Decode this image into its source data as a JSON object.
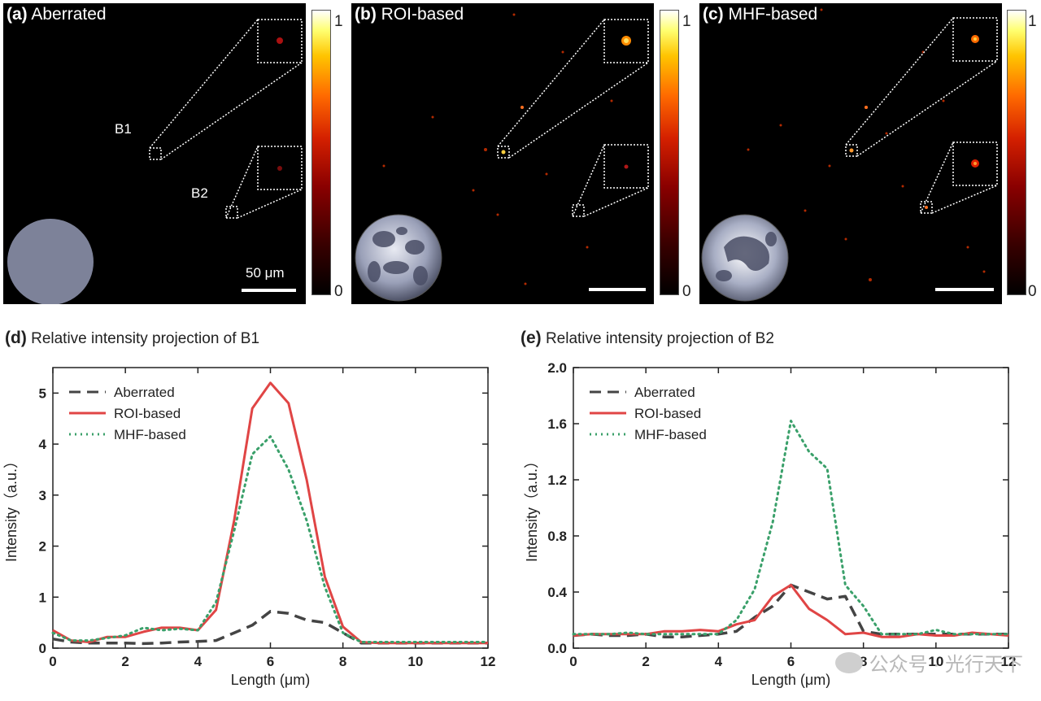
{
  "panels": [
    {
      "label": "(a)",
      "title": "Aberrated",
      "scale_text": "50 μm",
      "markers": [
        "B1",
        "B2"
      ],
      "cb_top": "1",
      "cb_bottom": "0"
    },
    {
      "label": "(b)",
      "title": "ROI-based",
      "cb_top": "1",
      "cb_bottom": "0"
    },
    {
      "label": "(c)",
      "title": "MHF-based",
      "cb_top": "1",
      "cb_bottom": "0"
    }
  ],
  "colors": {
    "aberrated": "#444444",
    "roi": "#e04545",
    "mhf": "#3aa06a",
    "pupil_flat": "#7d8299"
  },
  "watermark": "公众号 · 光行天下",
  "chart_data": [
    {
      "type": "line",
      "panel_label": "(d)",
      "title": "Relative intensity projection of B1",
      "xlabel": "Length (μm)",
      "ylabel": "Intensity（a.u.）",
      "xlim": [
        0,
        12
      ],
      "ylim": [
        0,
        5.5
      ],
      "xticks": [
        0,
        2,
        4,
        6,
        8,
        10,
        12
      ],
      "yticks": [
        0,
        1,
        2,
        3,
        4,
        5
      ],
      "legend": "top-left",
      "x": [
        0,
        0.5,
        1,
        1.5,
        2,
        2.5,
        3,
        3.5,
        4,
        4.5,
        5,
        5.5,
        6,
        6.5,
        7,
        7.5,
        8,
        8.5,
        9,
        9.5,
        10,
        10.5,
        11,
        11.5,
        12
      ],
      "series": [
        {
          "name": "Aberrated",
          "style": "dashed",
          "values": [
            0.18,
            0.12,
            0.1,
            0.1,
            0.1,
            0.09,
            0.1,
            0.12,
            0.13,
            0.15,
            0.3,
            0.45,
            0.72,
            0.68,
            0.55,
            0.5,
            0.3,
            0.1,
            0.1,
            0.1,
            0.1,
            0.1,
            0.1,
            0.1,
            0.1
          ]
        },
        {
          "name": "ROI-based",
          "style": "solid",
          "values": [
            0.35,
            0.15,
            0.12,
            0.22,
            0.22,
            0.32,
            0.4,
            0.4,
            0.35,
            0.75,
            2.5,
            4.7,
            5.2,
            4.8,
            3.3,
            1.4,
            0.42,
            0.12,
            0.1,
            0.1,
            0.1,
            0.1,
            0.1,
            0.1,
            0.1
          ]
        },
        {
          "name": "MHF-based",
          "style": "dotted",
          "values": [
            0.3,
            0.15,
            0.15,
            0.2,
            0.25,
            0.4,
            0.35,
            0.38,
            0.35,
            0.9,
            2.3,
            3.8,
            4.15,
            3.5,
            2.5,
            1.2,
            0.3,
            0.12,
            0.12,
            0.12,
            0.12,
            0.12,
            0.12,
            0.12,
            0.12
          ]
        }
      ]
    },
    {
      "type": "line",
      "panel_label": "(e)",
      "title": "Relative intensity projection of B2",
      "xlabel": "Length (μm)",
      "ylabel": "Intensity（a.u.）",
      "xlim": [
        0,
        12
      ],
      "ylim": [
        0,
        2.0
      ],
      "xticks": [
        0,
        2,
        4,
        6,
        8,
        10,
        12
      ],
      "yticks": [
        0.0,
        0.4,
        0.8,
        1.2,
        1.6,
        2.0
      ],
      "ytick_labels": [
        "0.0",
        "0.4",
        "0.8",
        "1.2",
        "1.6",
        "2.0"
      ],
      "legend": "top-left",
      "x": [
        0,
        0.5,
        1,
        1.5,
        2,
        2.5,
        3,
        3.5,
        4,
        4.5,
        5,
        5.5,
        6,
        6.5,
        7,
        7.5,
        8,
        8.5,
        9,
        9.5,
        10,
        10.5,
        11,
        11.5,
        12
      ],
      "series": [
        {
          "name": "Aberrated",
          "style": "dashed",
          "values": [
            0.09,
            0.1,
            0.09,
            0.09,
            0.1,
            0.08,
            0.08,
            0.09,
            0.1,
            0.12,
            0.22,
            0.3,
            0.45,
            0.4,
            0.35,
            0.37,
            0.12,
            0.1,
            0.1,
            0.1,
            0.1,
            0.1,
            0.1,
            0.1,
            0.1
          ]
        },
        {
          "name": "ROI-based",
          "style": "solid",
          "values": [
            0.09,
            0.1,
            0.1,
            0.1,
            0.1,
            0.12,
            0.12,
            0.13,
            0.12,
            0.17,
            0.2,
            0.37,
            0.45,
            0.28,
            0.2,
            0.1,
            0.11,
            0.08,
            0.08,
            0.1,
            0.09,
            0.09,
            0.11,
            0.1,
            0.09
          ]
        },
        {
          "name": "MHF-based",
          "style": "dotted",
          "values": [
            0.1,
            0.1,
            0.1,
            0.11,
            0.1,
            0.1,
            0.1,
            0.1,
            0.1,
            0.2,
            0.42,
            0.9,
            1.62,
            1.4,
            1.28,
            0.45,
            0.3,
            0.1,
            0.1,
            0.1,
            0.13,
            0.1,
            0.1,
            0.1,
            0.1
          ]
        }
      ]
    }
  ]
}
